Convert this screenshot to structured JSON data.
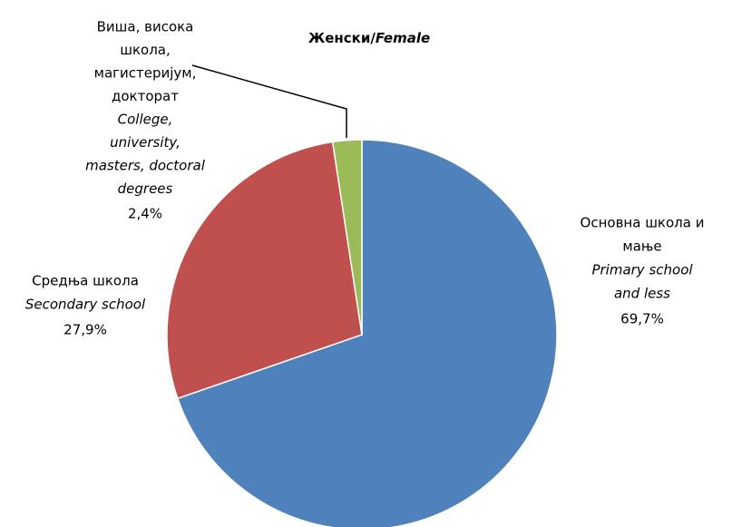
{
  "chart_data": {
    "type": "pie",
    "title": {
      "sr": "Женски/",
      "en": "Female"
    },
    "categories": [
      [
        "Основна школа и",
        "мање"
      ],
      [
        "Средња школа"
      ],
      [
        "Виша, висока",
        "школа,",
        "магистеријум,",
        "докторат"
      ]
    ],
    "categories_en": [
      [
        "Primary school",
        "and less"
      ],
      [
        "Secondary school"
      ],
      [
        "College,",
        "university,",
        "masters, doctoral",
        "degrees"
      ]
    ],
    "values": [
      69.7,
      27.9,
      2.4
    ],
    "value_labels": [
      "69,7%",
      "27,9%",
      "2,4%"
    ],
    "colors": [
      "#4f81bd",
      "#c0504d",
      "#9bbb59"
    ]
  }
}
